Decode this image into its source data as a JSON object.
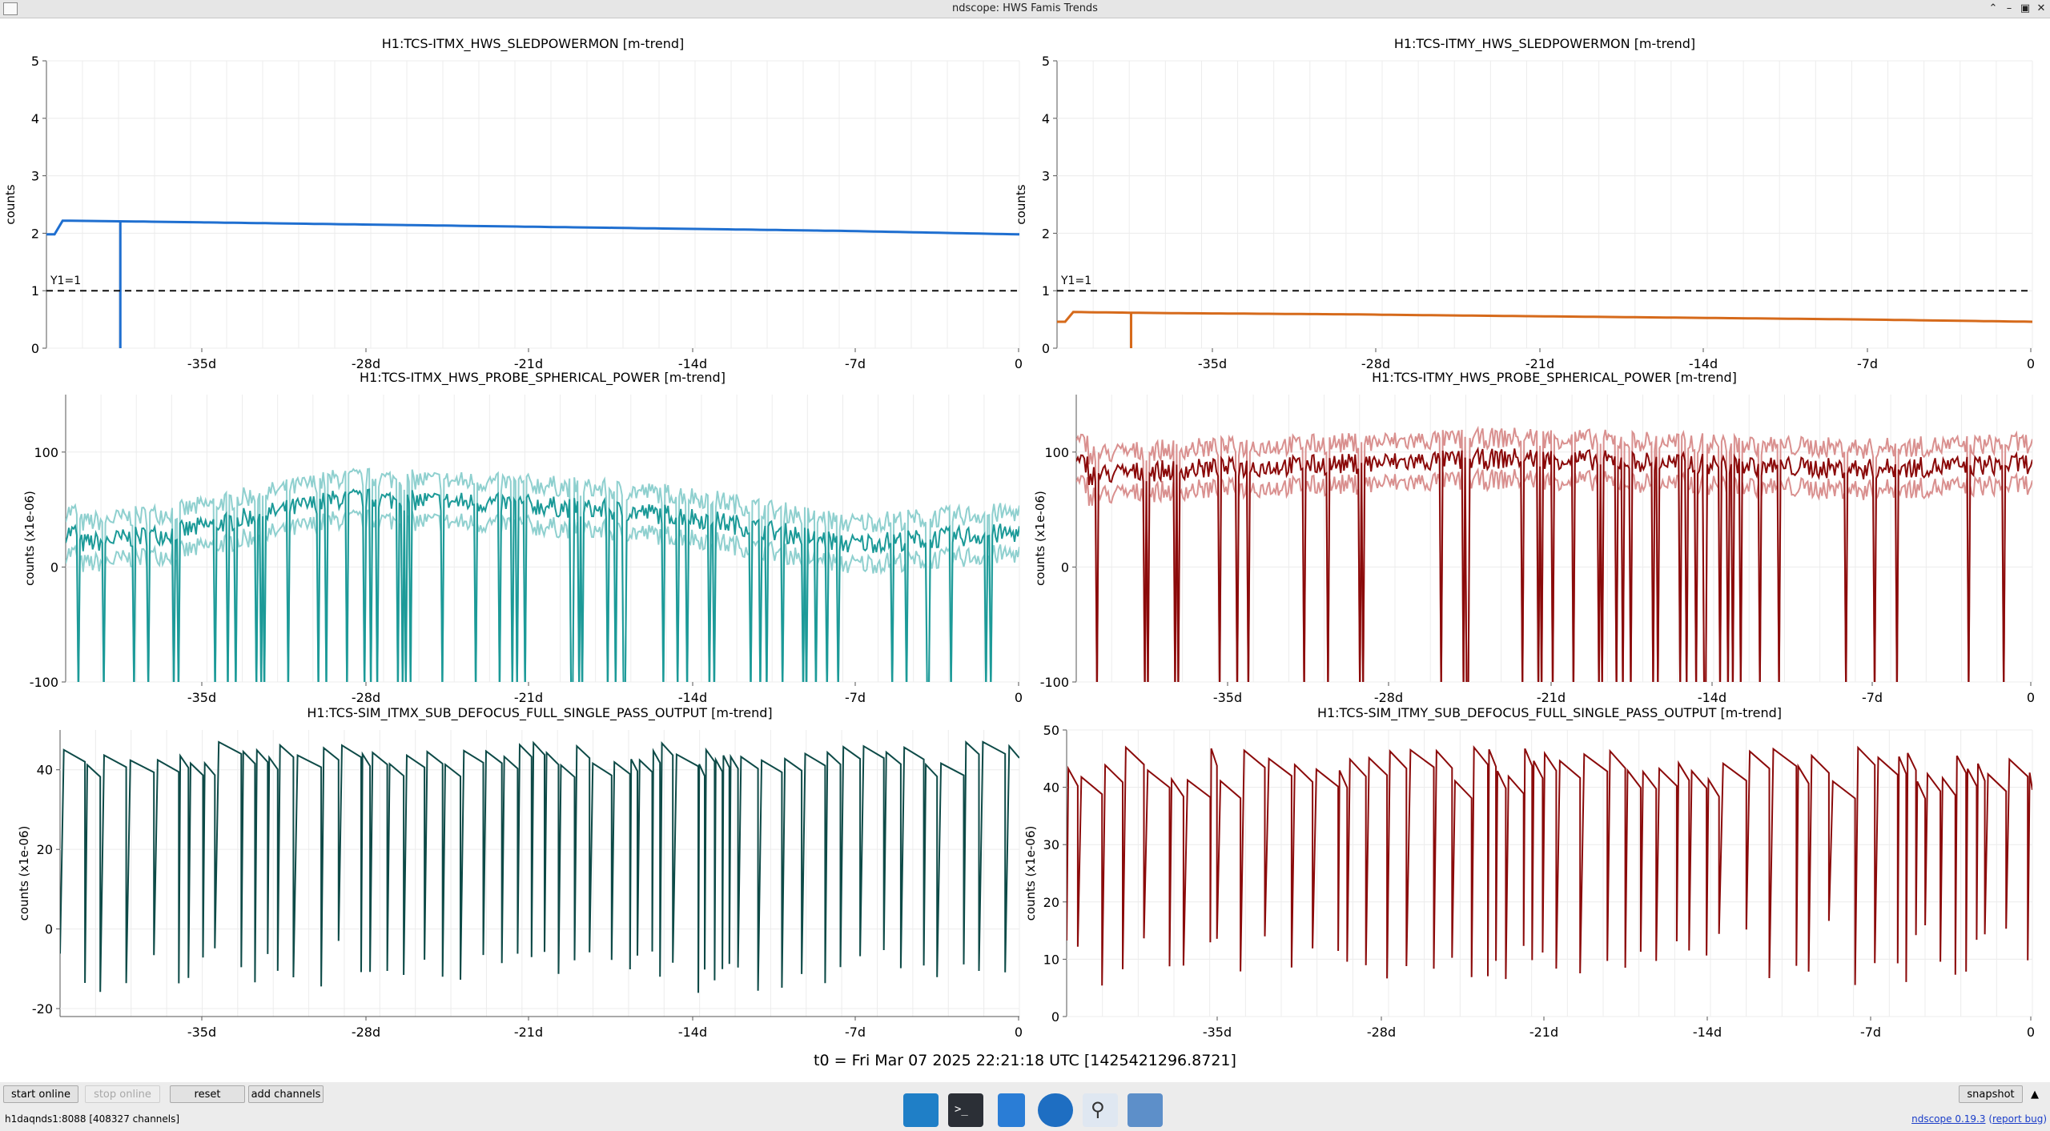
{
  "window": {
    "title": "ndscope: HWS Famis Trends"
  },
  "plots": [
    {
      "title": "H1:TCS-ITMX_HWS_SLEDPOWERMON [m-trend]",
      "ylabel": "counts",
      "yticks": [
        "0",
        "1",
        "2",
        "3",
        "4",
        "5"
      ],
      "color": "#1f6fd0",
      "annotation": "Y1=1"
    },
    {
      "title": "H1:TCS-ITMY_HWS_SLEDPOWERMON [m-trend]",
      "ylabel": "counts",
      "yticks": [
        "0",
        "1",
        "2",
        "3",
        "4",
        "5"
      ],
      "color": "#d66a1b",
      "annotation": "Y1=1"
    },
    {
      "title": "H1:TCS-ITMX_HWS_PROBE_SPHERICAL_POWER [m-trend]",
      "ylabel": "counts (x1e-06)",
      "yticks": [
        "-100",
        "0",
        "100"
      ],
      "color": "#1c9a98",
      "band_color": "#8fd0cf"
    },
    {
      "title": "H1:TCS-ITMY_HWS_PROBE_SPHERICAL_POWER [m-trend]",
      "ylabel": "counts (x1e-06)",
      "yticks": [
        "-100",
        "0",
        "100"
      ],
      "color": "#8b0a0a",
      "band_color": "#d9908f"
    },
    {
      "title": "H1:TCS-SIM_ITMX_SUB_DEFOCUS_FULL_SINGLE_PASS_OUTPUT [m-trend]",
      "ylabel": "counts (x1e-06)",
      "yticks": [
        "-20",
        "0",
        "20",
        "40"
      ],
      "color": "#0d4a47"
    },
    {
      "title": "H1:TCS-SIM_ITMY_SUB_DEFOCUS_FULL_SINGLE_PASS_OUTPUT [m-trend]",
      "ylabel": "counts (x1e-06)",
      "yticks": [
        "0",
        "10",
        "20",
        "30",
        "40",
        "50"
      ],
      "color": "#8b0a0a"
    }
  ],
  "xticks": [
    "-35d",
    "-28d",
    "-21d",
    "-14d",
    "-7d",
    "0"
  ],
  "t0": "t0 = Fri Mar 07 2025 22:21:18 UTC [1425421296.8721]",
  "controls": {
    "start_online": "start online",
    "stop_online": "stop online",
    "reset": "reset",
    "add_channels": "add channels",
    "snapshot": "snapshot"
  },
  "status": {
    "server": "h1daqnds1:8088  [408327 channels]",
    "version": "ndscope 0.19.3",
    "report": "report bug"
  },
  "chart_data": [
    {
      "type": "line",
      "title": "H1:TCS-ITMX_HWS_SLEDPOWERMON [m-trend]",
      "ylabel": "counts",
      "ylim": [
        0,
        5
      ],
      "x": [
        -39,
        -35,
        -28,
        -21,
        -14,
        -7,
        0
      ],
      "series": [
        {
          "values": [
            2.22,
            2.2,
            2.16,
            2.12,
            2.08,
            2.04,
            1.98
          ]
        }
      ],
      "threshold": 1,
      "grid": true
    },
    {
      "type": "line",
      "title": "H1:TCS-ITMY_HWS_SLEDPOWERMON [m-trend]",
      "ylabel": "counts",
      "ylim": [
        0,
        5
      ],
      "x": [
        -39,
        -35,
        -28,
        -21,
        -14,
        -7,
        0
      ],
      "series": [
        {
          "values": [
            0.63,
            0.61,
            0.59,
            0.56,
            0.53,
            0.5,
            0.46
          ]
        }
      ],
      "threshold": 1,
      "grid": true
    },
    {
      "type": "line",
      "title": "H1:TCS-ITMX_HWS_PROBE_SPHERICAL_POWER [m-trend]",
      "ylabel": "counts (x1e-06)",
      "ylim": [
        -100,
        150
      ],
      "x": [
        -39,
        -35,
        -28,
        -21,
        -14,
        -7,
        0
      ],
      "series": [
        {
          "values": [
            20,
            30,
            60,
            55,
            45,
            20,
            30
          ]
        }
      ],
      "grid": true
    },
    {
      "type": "line",
      "title": "H1:TCS-ITMY_HWS_PROBE_SPHERICAL_POWER [m-trend]",
      "ylabel": "counts (x1e-06)",
      "ylim": [
        -100,
        150
      ],
      "x": [
        -39,
        -35,
        -28,
        -21,
        -14,
        -7,
        0
      ],
      "series": [
        {
          "values": [
            80,
            85,
            90,
            95,
            90,
            85,
            90
          ]
        }
      ],
      "grid": true
    },
    {
      "type": "line",
      "title": "H1:TCS-SIM_ITMX_SUB_DEFOCUS_FULL_SINGLE_PASS_OUTPUT [m-trend]",
      "ylabel": "counts (x1e-06)",
      "ylim": [
        -22,
        50
      ],
      "x": [
        -39,
        -35,
        -28,
        -21,
        -14,
        -7,
        0
      ],
      "series": [
        {
          "values": [
            45,
            -5,
            46,
            -8,
            47,
            -12,
            46
          ]
        }
      ],
      "grid": true
    },
    {
      "type": "line",
      "title": "H1:TCS-SIM_ITMY_SUB_DEFOCUS_FULL_SINGLE_PASS_OUTPUT [m-trend]",
      "ylabel": "counts (x1e-06)",
      "ylim": [
        0,
        50
      ],
      "x": [
        -39,
        -35,
        -28,
        -21,
        -14,
        -7,
        0
      ],
      "series": [
        {
          "values": [
            45,
            15,
            47,
            12,
            46,
            5,
            45
          ]
        }
      ],
      "grid": true
    }
  ]
}
